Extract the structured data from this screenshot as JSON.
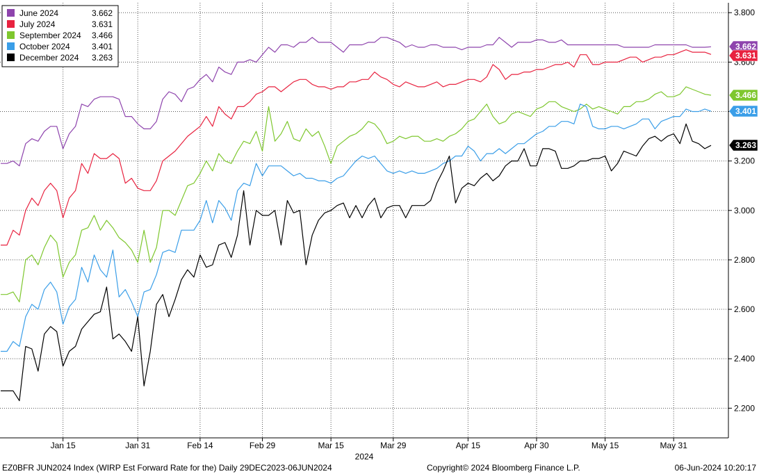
{
  "chart_data": {
    "type": "line",
    "title": "",
    "xlabel": "2024",
    "ylabel": "",
    "ylim": [
      2.08,
      3.84
    ],
    "y_ticks": [
      2.2,
      2.4,
      2.6,
      2.8,
      3.0,
      3.2,
      3.4,
      3.6,
      3.8
    ],
    "y_tick_labels": [
      "2.200",
      "2.400",
      "2.600",
      "2.800",
      "3.000",
      "3.200",
      "3.400",
      "3.600",
      "3.800"
    ],
    "x_tick_labels": [
      "Jan 15",
      "Jan 31",
      "Feb 14",
      "Feb 29",
      "Mar 15",
      "Mar 29",
      "Apr 15",
      "Apr 30",
      "May 15",
      "May 31"
    ],
    "grid": true,
    "legend_position": "top-left",
    "n_points": 115,
    "series": [
      {
        "name": "June 2024",
        "last_label": "3.662",
        "color": "#8e44ad",
        "values": [
          3.19,
          3.19,
          3.2,
          3.18,
          3.27,
          3.29,
          3.28,
          3.32,
          3.34,
          3.34,
          3.25,
          3.31,
          3.34,
          3.43,
          3.42,
          3.45,
          3.46,
          3.46,
          3.46,
          3.45,
          3.38,
          3.38,
          3.35,
          3.33,
          3.33,
          3.36,
          3.45,
          3.48,
          3.47,
          3.44,
          3.49,
          3.5,
          3.53,
          3.55,
          3.52,
          3.58,
          3.56,
          3.55,
          3.6,
          3.6,
          3.61,
          3.6,
          3.63,
          3.66,
          3.64,
          3.67,
          3.67,
          3.66,
          3.68,
          3.68,
          3.7,
          3.68,
          3.68,
          3.68,
          3.66,
          3.64,
          3.67,
          3.67,
          3.67,
          3.68,
          3.68,
          3.7,
          3.7,
          3.69,
          3.68,
          3.66,
          3.67,
          3.66,
          3.66,
          3.67,
          3.67,
          3.66,
          3.66,
          3.66,
          3.65,
          3.66,
          3.66,
          3.66,
          3.67,
          3.67,
          3.7,
          3.68,
          3.66,
          3.68,
          3.68,
          3.68,
          3.69,
          3.69,
          3.68,
          3.68,
          3.69,
          3.67,
          3.67,
          3.67,
          3.67,
          3.67,
          3.67,
          3.67,
          3.67,
          3.67,
          3.66,
          3.66,
          3.66,
          3.66,
          3.66,
          3.67,
          3.67,
          3.67,
          3.67,
          3.67,
          3.67,
          3.66,
          3.66,
          3.66,
          3.662
        ]
      },
      {
        "name": "July 2024",
        "last_label": "3.631",
        "color": "#e8223f",
        "values": [
          2.86,
          2.86,
          2.92,
          2.9,
          3.0,
          3.05,
          3.02,
          3.08,
          3.11,
          3.08,
          2.97,
          3.05,
          3.08,
          3.19,
          3.15,
          3.23,
          3.21,
          3.21,
          3.23,
          3.21,
          3.11,
          3.13,
          3.09,
          3.08,
          3.08,
          3.12,
          3.2,
          3.22,
          3.24,
          3.27,
          3.3,
          3.32,
          3.34,
          3.38,
          3.34,
          3.42,
          3.39,
          3.37,
          3.42,
          3.42,
          3.44,
          3.47,
          3.48,
          3.5,
          3.5,
          3.48,
          3.5,
          3.52,
          3.53,
          3.53,
          3.51,
          3.5,
          3.5,
          3.49,
          3.5,
          3.5,
          3.52,
          3.52,
          3.53,
          3.53,
          3.56,
          3.54,
          3.53,
          3.51,
          3.5,
          3.52,
          3.51,
          3.5,
          3.5,
          3.51,
          3.52,
          3.5,
          3.51,
          3.51,
          3.52,
          3.53,
          3.53,
          3.52,
          3.54,
          3.59,
          3.57,
          3.53,
          3.55,
          3.55,
          3.56,
          3.56,
          3.57,
          3.57,
          3.58,
          3.59,
          3.59,
          3.6,
          3.58,
          3.63,
          3.63,
          3.59,
          3.59,
          3.6,
          3.6,
          3.6,
          3.61,
          3.62,
          3.62,
          3.6,
          3.61,
          3.62,
          3.62,
          3.63,
          3.63,
          3.64,
          3.65,
          3.64,
          3.64,
          3.64,
          3.631
        ]
      },
      {
        "name": "September 2024",
        "last_label": "3.466",
        "color": "#7ec72e",
        "values": [
          2.66,
          2.66,
          2.67,
          2.63,
          2.8,
          2.82,
          2.78,
          2.85,
          2.9,
          2.87,
          2.73,
          2.79,
          2.82,
          2.92,
          2.93,
          2.98,
          2.92,
          2.96,
          2.93,
          2.89,
          2.87,
          2.84,
          2.79,
          2.92,
          2.79,
          2.85,
          3.0,
          3.0,
          2.98,
          3.04,
          3.1,
          3.11,
          3.15,
          3.2,
          3.16,
          3.23,
          3.2,
          3.19,
          3.24,
          3.28,
          3.27,
          3.32,
          3.24,
          3.42,
          3.28,
          3.31,
          3.36,
          3.29,
          3.28,
          3.33,
          3.3,
          3.32,
          3.26,
          3.19,
          3.26,
          3.28,
          3.3,
          3.31,
          3.33,
          3.36,
          3.35,
          3.32,
          3.27,
          3.28,
          3.3,
          3.29,
          3.3,
          3.3,
          3.28,
          3.28,
          3.29,
          3.28,
          3.3,
          3.31,
          3.33,
          3.36,
          3.37,
          3.4,
          3.43,
          3.38,
          3.35,
          3.36,
          3.39,
          3.4,
          3.39,
          3.38,
          3.41,
          3.42,
          3.44,
          3.44,
          3.42,
          3.41,
          3.4,
          3.41,
          3.43,
          3.41,
          3.42,
          3.41,
          3.4,
          3.39,
          3.42,
          3.42,
          3.44,
          3.44,
          3.45,
          3.47,
          3.48,
          3.46,
          3.46,
          3.47,
          3.5,
          3.49,
          3.48,
          3.47,
          3.466
        ]
      },
      {
        "name": "October 2024",
        "last_label": "3.401",
        "color": "#3a9ee8",
        "values": [
          2.43,
          2.43,
          2.47,
          2.45,
          2.57,
          2.62,
          2.6,
          2.68,
          2.71,
          2.67,
          2.54,
          2.61,
          2.64,
          2.77,
          2.71,
          2.82,
          2.76,
          2.73,
          2.84,
          2.65,
          2.68,
          2.63,
          2.57,
          2.67,
          2.68,
          2.74,
          2.83,
          2.84,
          2.83,
          2.92,
          2.92,
          2.92,
          2.96,
          3.04,
          2.95,
          3.04,
          3.01,
          2.96,
          3.08,
          3.11,
          3.1,
          3.19,
          3.14,
          3.18,
          3.18,
          3.18,
          3.16,
          3.14,
          3.15,
          3.13,
          3.13,
          3.12,
          3.12,
          3.11,
          3.13,
          3.14,
          3.17,
          3.2,
          3.22,
          3.21,
          3.22,
          3.19,
          3.16,
          3.15,
          3.16,
          3.15,
          3.16,
          3.15,
          3.15,
          3.16,
          3.17,
          3.19,
          3.2,
          3.22,
          3.22,
          3.26,
          3.24,
          3.2,
          3.23,
          3.23,
          3.25,
          3.23,
          3.25,
          3.27,
          3.27,
          3.29,
          3.31,
          3.32,
          3.34,
          3.34,
          3.36,
          3.36,
          3.35,
          3.43,
          3.42,
          3.34,
          3.33,
          3.33,
          3.34,
          3.34,
          3.33,
          3.34,
          3.35,
          3.37,
          3.37,
          3.33,
          3.36,
          3.37,
          3.38,
          3.38,
          3.41,
          3.4,
          3.4,
          3.41,
          3.401
        ]
      },
      {
        "name": "December 2024",
        "last_label": "3.263",
        "color": "#000000",
        "values": [
          2.27,
          2.27,
          2.27,
          2.23,
          2.45,
          2.44,
          2.35,
          2.5,
          2.53,
          2.51,
          2.37,
          2.43,
          2.45,
          2.52,
          2.55,
          2.58,
          2.59,
          2.69,
          2.48,
          2.5,
          2.47,
          2.43,
          2.57,
          2.29,
          2.43,
          2.62,
          2.66,
          2.57,
          2.64,
          2.72,
          2.76,
          2.73,
          2.82,
          2.77,
          2.78,
          2.86,
          2.87,
          2.81,
          2.9,
          3.08,
          2.86,
          3.0,
          2.98,
          2.98,
          3.0,
          2.86,
          3.04,
          2.99,
          3.0,
          2.78,
          2.9,
          2.96,
          2.99,
          3.0,
          3.02,
          3.03,
          2.97,
          3.02,
          2.97,
          3.02,
          3.05,
          2.97,
          3.01,
          3.02,
          3.02,
          2.97,
          3.02,
          3.02,
          3.02,
          3.04,
          3.11,
          3.16,
          3.22,
          3.03,
          3.09,
          3.11,
          3.1,
          3.13,
          3.15,
          3.12,
          3.14,
          3.18,
          3.2,
          3.2,
          3.25,
          3.18,
          3.18,
          3.25,
          3.25,
          3.24,
          3.17,
          3.17,
          3.18,
          3.2,
          3.2,
          3.21,
          3.21,
          3.22,
          3.16,
          3.19,
          3.24,
          3.23,
          3.22,
          3.26,
          3.29,
          3.3,
          3.28,
          3.3,
          3.31,
          3.27,
          3.35,
          3.28,
          3.27,
          3.25,
          3.263
        ]
      }
    ]
  },
  "footer": {
    "left": "EZ0BFR JUN2024 Index (WIRP Est Forward Rate for the)  Daily 29DEC2023-06JUN2024",
    "center": "Copyright© 2024 Bloomberg Finance L.P.",
    "right": "06-Jun-2024 10:20:17"
  }
}
